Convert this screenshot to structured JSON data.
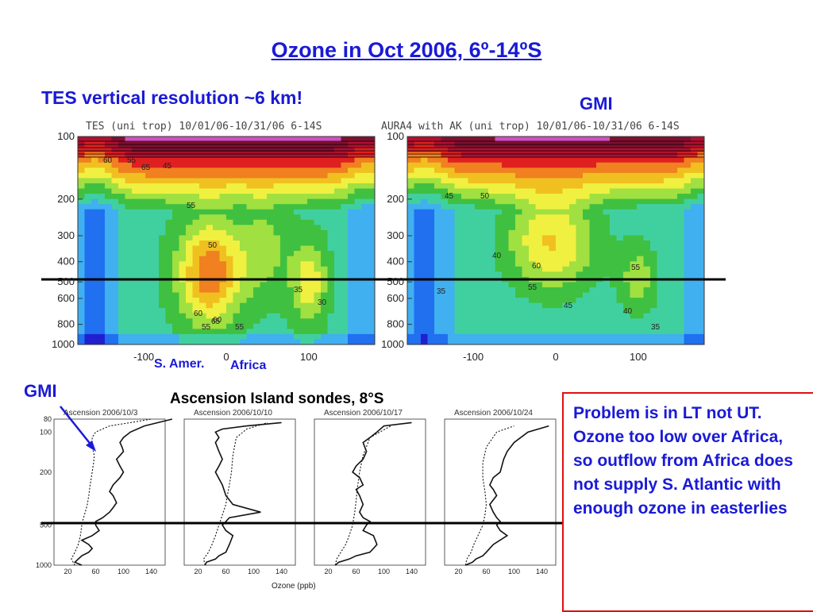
{
  "slide": {
    "title": "Ozone in Oct 2006, 6º-14ºS",
    "tes_note": "TES vertical resolution ~6 km!",
    "gmi_label_top": "GMI",
    "gmi_label_bottom": "GMI",
    "region_labels": {
      "s_amer": "S. Amer.",
      "africa": "Africa"
    },
    "sonde_heading": "Ascension Island sondes, 8°S",
    "note": "Problem is in LT not UT.  Ozone too low over Africa, so outflow from Africa does not supply S. Atlantic with enough ozone in easterlies",
    "colors": {
      "title": "#1a1ad6",
      "note_border": "#e01010"
    }
  },
  "chart_data": [
    {
      "type": "heatmap",
      "title": "TES (uni trop) 10/01/06-10/31/06 6-14S",
      "xlabel": "",
      "ylabel": "",
      "xlim": [
        -180,
        180
      ],
      "y_log": true,
      "ylim": [
        1000,
        100
      ],
      "y_ticks": [
        "100",
        "200",
        "300",
        "400",
        "500",
        "600",
        "800",
        "1000"
      ],
      "x_ticks": [
        "-100",
        "0",
        "100"
      ],
      "contour_labels": [
        "60",
        "55",
        "65",
        "45",
        "55",
        "50",
        "60",
        "65",
        "55",
        "60",
        "55",
        "35",
        "30"
      ]
    },
    {
      "type": "heatmap",
      "title": "AURA4  with AK (uni trop) 10/01/06-10/31/06 6-14S",
      "xlabel": "",
      "ylabel": "",
      "xlim": [
        -180,
        180
      ],
      "y_log": true,
      "ylim": [
        1000,
        100
      ],
      "y_ticks": [
        "100",
        "200",
        "300",
        "400",
        "500",
        "600",
        "800",
        "1000"
      ],
      "x_ticks": [
        "-100",
        "0",
        "100"
      ],
      "contour_labels": [
        "50",
        "45",
        "40",
        "60",
        "55",
        "35",
        "45",
        "55",
        "40",
        "35"
      ]
    },
    {
      "type": "line",
      "panels": [
        {
          "title": "Ascension 2006/10/3",
          "series": [
            {
              "style": "solid",
              "x": [
                40,
                30,
                35,
                40,
                50,
                55,
                50,
                40,
                55,
                65,
                60,
                60,
                70,
                80,
                85,
                90,
                85,
                80,
                85,
                95,
                100,
                95,
                90,
                95,
                100,
                98,
                95,
                100,
                110,
                130,
                170
              ],
              "y": [
                1000,
                950,
                900,
                850,
                800,
                750,
                700,
                650,
                600,
                550,
                500,
                470,
                440,
                400,
                370,
                340,
                300,
                280,
                250,
                220,
                200,
                180,
                160,
                150,
                140,
                130,
                120,
                110,
                100,
                90,
                80
              ]
            },
            {
              "style": "dotted",
              "x": [
                30,
                25,
                30,
                35,
                38,
                40,
                42,
                45,
                48,
                50,
                52,
                55,
                57,
                58,
                55,
                55,
                60,
                80,
                110,
                140
              ],
              "y": [
                1000,
                900,
                800,
                700,
                600,
                500,
                450,
                400,
                350,
                300,
                250,
                200,
                170,
                150,
                130,
                110,
                100,
                90,
                85,
                80
              ]
            }
          ]
        },
        {
          "title": "Ascension 2006/10/10",
          "series": [
            {
              "style": "solid",
              "x": [
                30,
                32,
                45,
                50,
                60,
                65,
                70,
                60,
                55,
                60,
                65,
                110,
                70,
                60,
                55,
                45,
                50,
                55,
                50,
                45,
                50,
                45,
                55,
                90,
                140
              ],
              "y": [
                1000,
                950,
                900,
                850,
                800,
                700,
                600,
                550,
                500,
                470,
                440,
                400,
                350,
                300,
                250,
                200,
                180,
                160,
                140,
                120,
                110,
                100,
                95,
                90,
                85
              ]
            },
            {
              "style": "dotted",
              "x": [
                30,
                28,
                35,
                40,
                45,
                50,
                55,
                60,
                62,
                65,
                68,
                70,
                75,
                90,
                120
              ],
              "y": [
                1000,
                900,
                800,
                700,
                600,
                500,
                420,
                350,
                300,
                250,
                200,
                150,
                110,
                95,
                85
              ]
            }
          ]
        },
        {
          "title": "Ascension 2006/10/17",
          "series": [
            {
              "style": "solid",
              "x": [
                30,
                35,
                50,
                60,
                80,
                90,
                85,
                70,
                75,
                80,
                70,
                65,
                70,
                65,
                60,
                70,
                65,
                55,
                60,
                70,
                75,
                70,
                80,
                90,
                100,
                140
              ],
              "y": [
                1000,
                950,
                900,
                850,
                800,
                700,
                600,
                550,
                500,
                470,
                440,
                400,
                350,
                300,
                270,
                250,
                220,
                200,
                180,
                160,
                140,
                120,
                110,
                100,
                90,
                85
              ]
            },
            {
              "style": "dotted",
              "x": [
                30,
                32,
                38,
                45,
                50,
                55,
                58,
                60,
                62,
                65,
                70,
                80,
                110
              ],
              "y": [
                1000,
                900,
                800,
                700,
                600,
                500,
                400,
                330,
                260,
                200,
                150,
                110,
                90
              ]
            }
          ]
        },
        {
          "title": "Ascension 2006/10/24",
          "series": [
            {
              "style": "solid",
              "x": [
                30,
                40,
                45,
                55,
                60,
                70,
                90,
                80,
                75,
                80,
                75,
                70,
                65,
                75,
                70,
                65,
                70,
                80,
                85,
                90,
                100,
                120,
                150
              ],
              "y": [
                1000,
                950,
                900,
                850,
                800,
                700,
                600,
                550,
                500,
                470,
                440,
                400,
                350,
                300,
                270,
                250,
                220,
                200,
                160,
                140,
                120,
                100,
                90
              ]
            },
            {
              "style": "dotted",
              "x": [
                30,
                32,
                38,
                42,
                48,
                55,
                58,
                60,
                58,
                55,
                55,
                60,
                75,
                100
              ],
              "y": [
                1000,
                900,
                800,
                700,
                600,
                500,
                420,
                350,
                280,
                220,
                170,
                130,
                100,
                90
              ]
            }
          ]
        }
      ],
      "xlabel": "Ozone (ppb)",
      "xlim": [
        0,
        160
      ],
      "x_ticks": [
        "20",
        "60",
        "100",
        "140"
      ],
      "x_tick_labels": [
        "20",
        "60",
        "100",
        "140",
        "20",
        "60",
        "100",
        "140",
        "20",
        "60",
        "100",
        "140",
        "20",
        "60",
        "100",
        "140"
      ],
      "y_log": true,
      "ylim": [
        1000,
        80
      ],
      "y_ticks": [
        "80",
        "100",
        "200",
        "500",
        "1000"
      ]
    }
  ]
}
